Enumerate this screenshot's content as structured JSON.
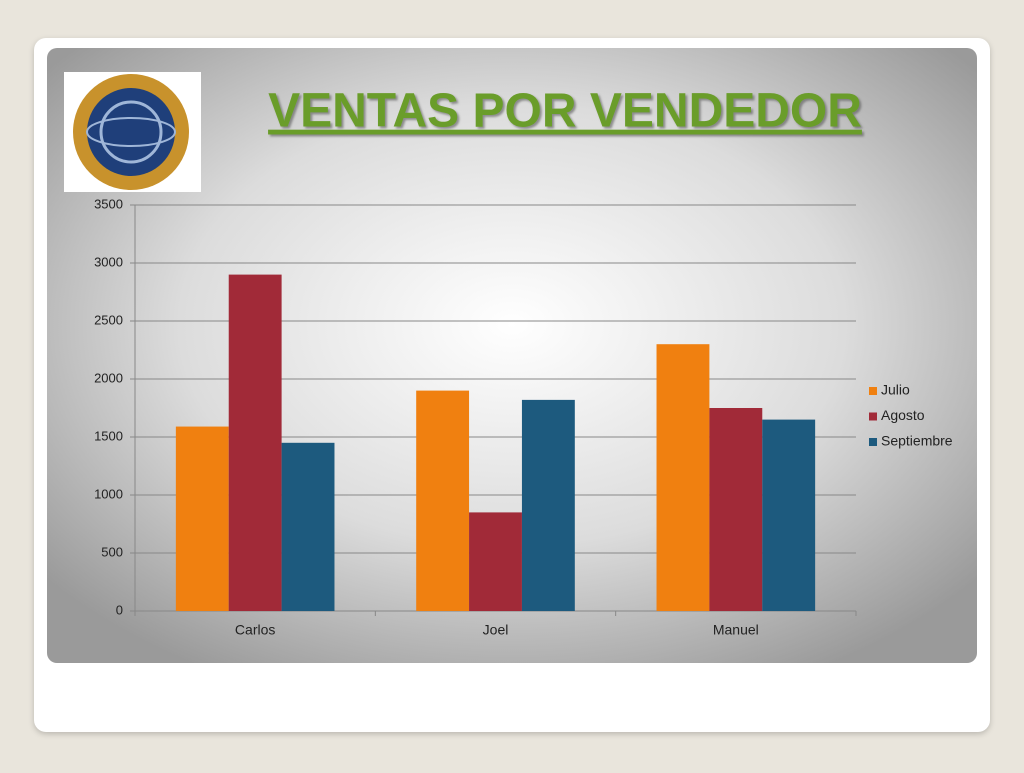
{
  "chart_data": {
    "type": "bar",
    "title": "VENTAS POR VENDEDOR",
    "categories": [
      "Carlos",
      "Joel",
      "Manuel"
    ],
    "series": [
      {
        "name": "Julio",
        "color": "#f08010",
        "values": [
          1590,
          1900,
          2300
        ]
      },
      {
        "name": "Agosto",
        "color": "#a12a38",
        "values": [
          2900,
          850,
          1750
        ]
      },
      {
        "name": "Septiembre",
        "color": "#1d5a7e",
        "values": [
          1450,
          1820,
          1650
        ]
      }
    ],
    "ylim": [
      0,
      3500
    ],
    "yticks": [
      0,
      500,
      1000,
      1500,
      2000,
      2500,
      3000,
      3500
    ],
    "grid": true,
    "legend": "right"
  }
}
